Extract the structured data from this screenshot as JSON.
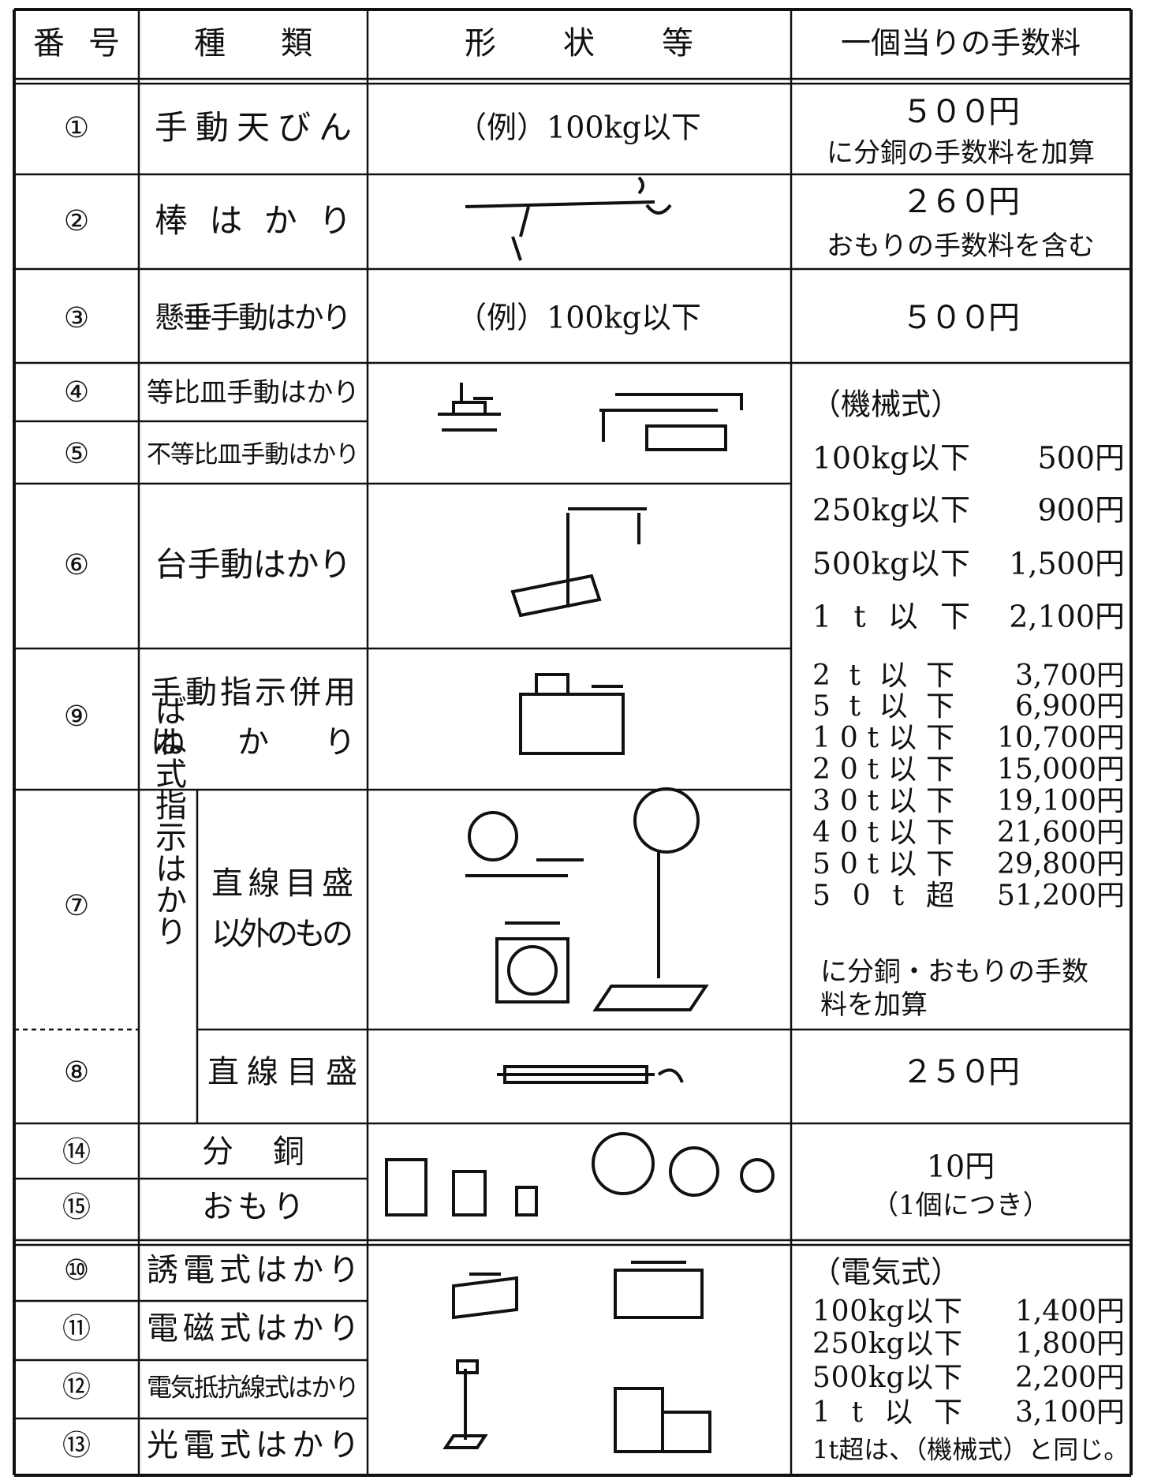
{
  "header": {
    "number": "番号",
    "kind": "種類",
    "shape": "形状等",
    "fee": "一個当りの手数料"
  },
  "rows": [
    {
      "no": "①",
      "kind": "手動天びん",
      "shape": "（例）100kg以下"
    },
    {
      "no": "②",
      "kind": "棒はかり"
    },
    {
      "no": "③",
      "kind": "懸垂手動はかり",
      "shape": "（例）100kg以下"
    },
    {
      "no": "④",
      "kind": "等比皿手動はかり"
    },
    {
      "no": "⑤",
      "kind": "不等比皿手動はかり"
    },
    {
      "no": "⑥",
      "kind": "台手動はかり"
    },
    {
      "no": "⑨",
      "kind": [
        "手動指示併用",
        "はかり"
      ]
    },
    {
      "no": "⑦",
      "group": "ばね式指示はかり",
      "kind": [
        "直線目盛",
        "以外のもの"
      ]
    },
    {
      "no": "⑧",
      "kind": "直線目盛"
    },
    {
      "no": "⑭",
      "kind": "分銅"
    },
    {
      "no": "⑮",
      "kind": "おもり"
    },
    {
      "no": "⑩",
      "kind": "誘電式はかり"
    },
    {
      "no": "⑪",
      "kind": "電磁式はかり"
    },
    {
      "no": "⑫",
      "kind": "電気抵抗線式はかり"
    },
    {
      "no": "⑬",
      "kind": "光電式はかり"
    }
  ],
  "fees": {
    "balance": [
      "５００円",
      "に分銅の手数料を加算"
    ],
    "steelyard": [
      "２６０円",
      "おもりの手数料を含む"
    ],
    "hanging": "５００円",
    "mechanical": {
      "heading": "（機械式）",
      "items": [
        [
          "100kg以下",
          "500円"
        ],
        [
          "250kg以下",
          "900円"
        ],
        [
          "500kg以下",
          "1,500円"
        ],
        [
          "1t以下",
          "2,100円"
        ],
        [
          "2t以下",
          "3,700円"
        ],
        [
          "5t以下",
          "6,900円"
        ],
        [
          "10t以下",
          "10,700円"
        ],
        [
          "20t以下",
          "15,000円"
        ],
        [
          "30t以下",
          "19,100円"
        ],
        [
          "40t以下",
          "21,600円"
        ],
        [
          "50t以下",
          "29,800円"
        ],
        [
          "50t超",
          "51,200円"
        ]
      ],
      "note": [
        "に分銅・おもりの手数",
        "料を加算"
      ]
    },
    "spring_linear": "２５０円",
    "weights": [
      "10円",
      "（1個につき）"
    ],
    "electric": {
      "heading": "（電気式）",
      "items": [
        [
          "100kg以下",
          "1,400円"
        ],
        [
          "250kg以下",
          "1,800円"
        ],
        [
          "500kg以下",
          "2,200円"
        ],
        [
          "1t以下",
          "3,100円"
        ]
      ],
      "note": "1t超は、（機械式）と同じ。"
    }
  }
}
